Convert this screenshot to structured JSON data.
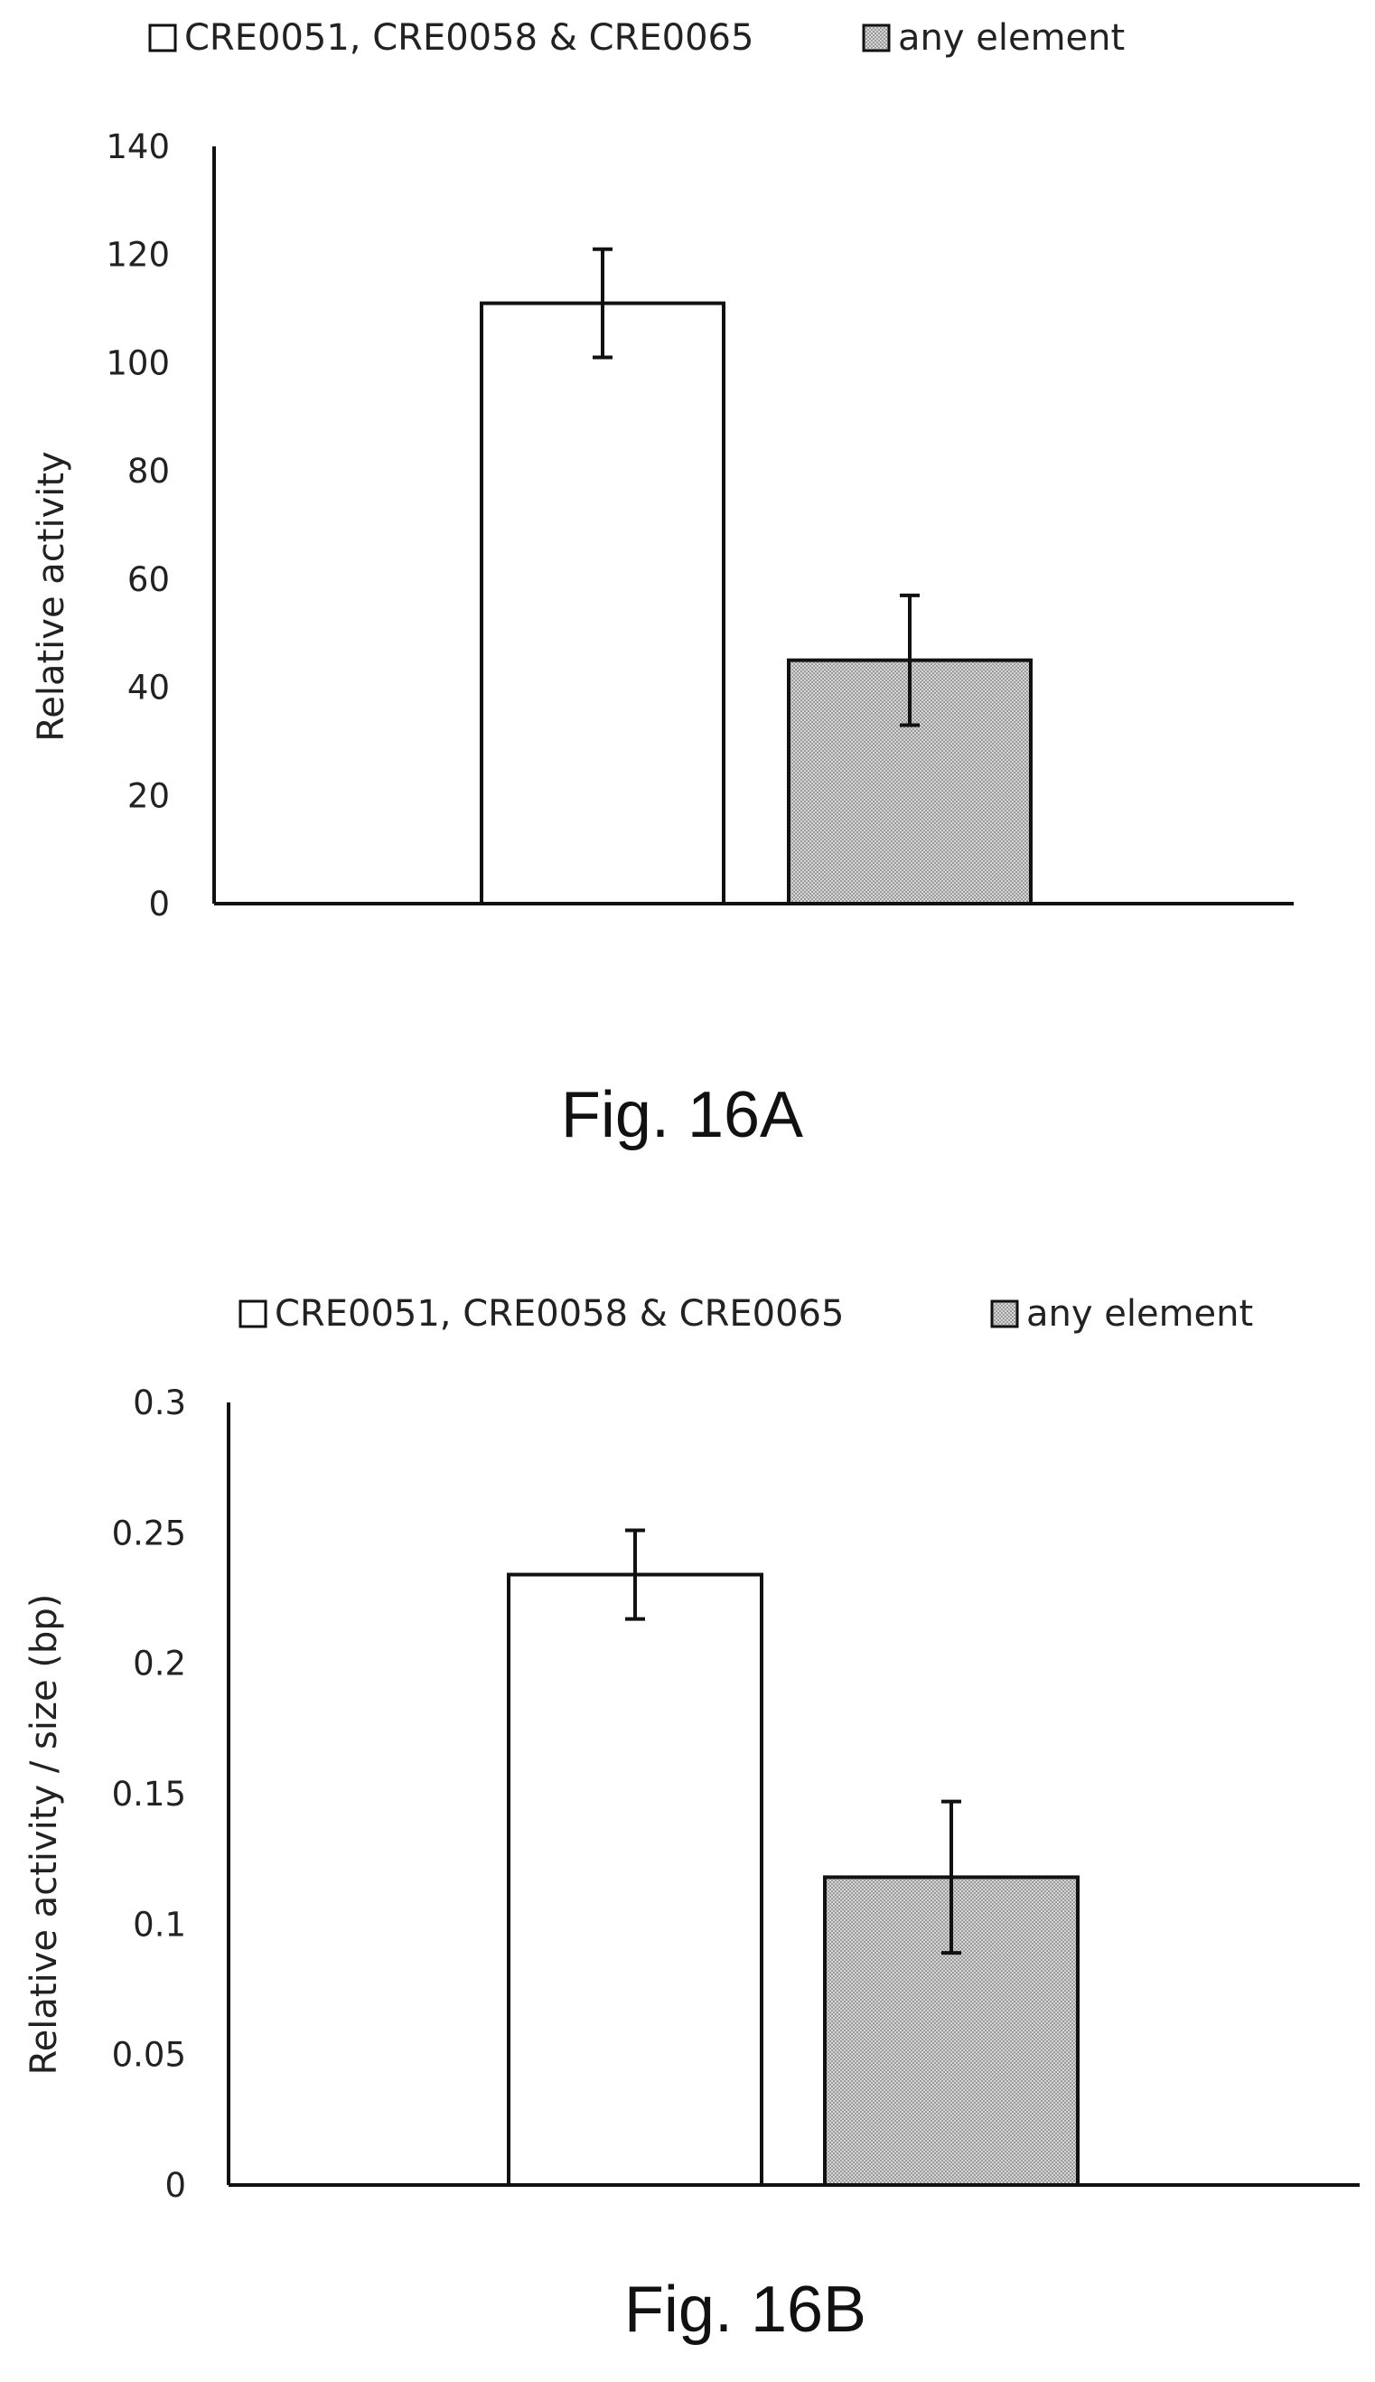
{
  "figure_a": {
    "caption": "Fig. 16A",
    "chart_data": {
      "type": "bar",
      "categories": [
        "CRE0051, CRE0058 & CRE0065",
        "any element"
      ],
      "series": [
        {
          "name": "CRE0051, CRE0058 & CRE0065",
          "value": 111,
          "error": 10,
          "fill": "#ffffff"
        },
        {
          "name": "any element",
          "value": 45,
          "error": 12,
          "fill": "#c8c8c8"
        }
      ],
      "xlabel": "",
      "ylabel": "Relative activity",
      "ylim": [
        0,
        140
      ],
      "yticks": [
        "0",
        "20",
        "40",
        "60",
        "80",
        "100",
        "120",
        "140"
      ],
      "ytick_values": [
        0,
        20,
        40,
        60,
        80,
        100,
        120,
        140
      ],
      "legend_position": "top",
      "grid": false
    }
  },
  "figure_b": {
    "caption": "Fig. 16B",
    "chart_data": {
      "type": "bar",
      "categories": [
        "CRE0051, CRE0058 & CRE0065",
        "any element"
      ],
      "series": [
        {
          "name": "CRE0051, CRE0058 & CRE0065",
          "value": 0.234,
          "error": 0.017,
          "fill": "#ffffff"
        },
        {
          "name": "any element",
          "value": 0.118,
          "error": 0.029,
          "fill": "#c8c8c8"
        }
      ],
      "xlabel": "",
      "ylabel": "Relative activity / size (bp)",
      "ylim": [
        0,
        0.3
      ],
      "yticks": [
        "0",
        "0.05",
        "0.1",
        "0.15",
        "0.2",
        "0.25",
        "0.3"
      ],
      "ytick_values": [
        0,
        0.05,
        0.1,
        0.15,
        0.2,
        0.25,
        0.3
      ],
      "legend_position": "top",
      "grid": false
    }
  },
  "colors": {
    "axis": "#111111",
    "bar_outline": "#111111",
    "pattern_fill": "#c8c8c8"
  }
}
